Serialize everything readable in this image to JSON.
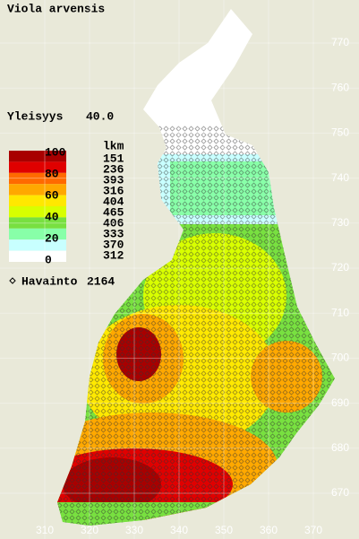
{
  "title": "Viola arvensis",
  "frequency": {
    "label": "Yleisyys",
    "value": "40.0"
  },
  "legend": {
    "scale": [
      100,
      80,
      60,
      40,
      20,
      0
    ],
    "count_header": "lkm",
    "bands": [
      {
        "color": "#a80000",
        "count": 151
      },
      {
        "color": "#e00000",
        "count": 236
      },
      {
        "color": "#ff6a00",
        "count": 393
      },
      {
        "color": "#ffa800",
        "count": 316
      },
      {
        "color": "#ffe800",
        "count": 404
      },
      {
        "color": "#d8ff00",
        "count": 465
      },
      {
        "color": "#78e040",
        "count": 406
      },
      {
        "color": "#88ffa8",
        "count": 333
      },
      {
        "color": "#c8ffff",
        "count": 370
      },
      {
        "color": "#ffffff",
        "count": 312
      }
    ]
  },
  "observations": {
    "label": "Havainto",
    "count": 2164
  },
  "grid": {
    "north": [
      770,
      760,
      750,
      740,
      730,
      720,
      710,
      700,
      690,
      680,
      670
    ],
    "east": [
      310,
      320,
      330,
      340,
      350,
      360,
      370
    ]
  }
}
